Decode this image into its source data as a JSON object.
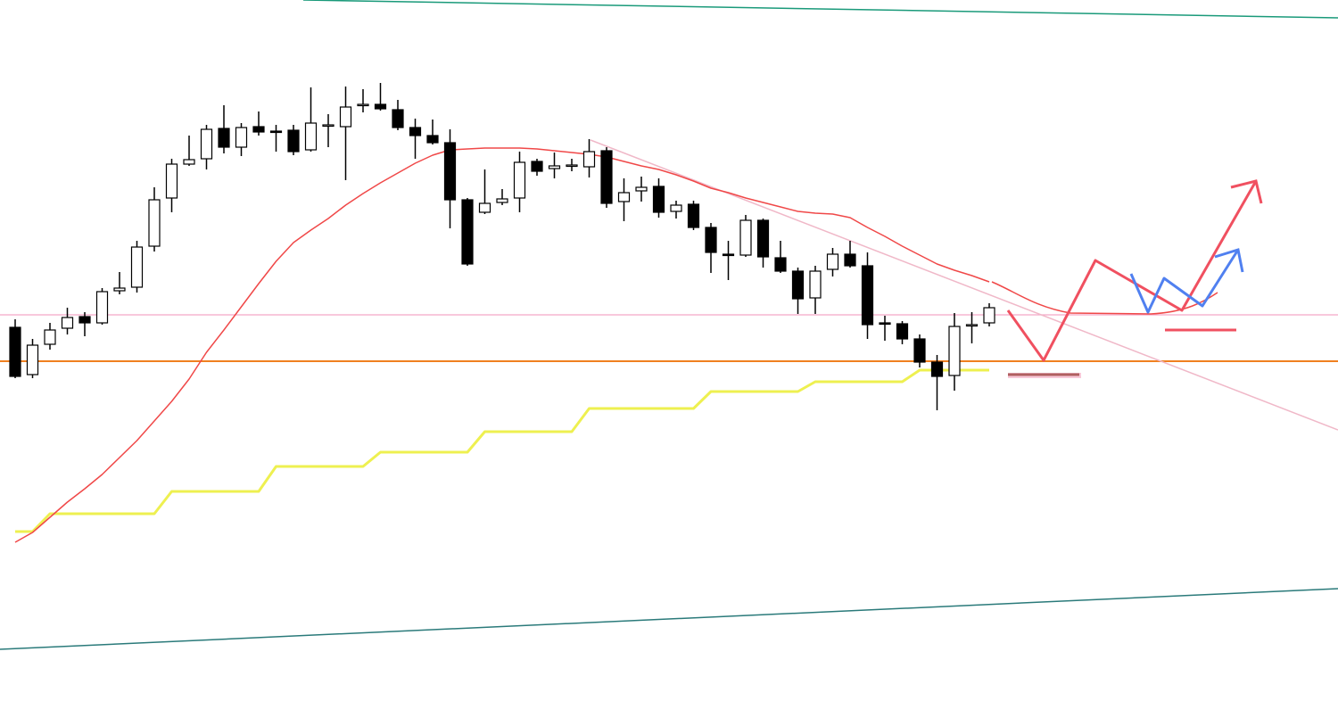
{
  "chart_data": {
    "type": "candlestick",
    "ylim": [
      0,
      814
    ],
    "open": [
      447,
      394,
      428,
      446,
      459,
      452,
      488,
      492,
      538,
      592,
      630,
      636,
      670,
      649,
      672,
      667,
      668,
      646,
      673,
      672,
      696,
      697,
      691,
      671,
      662,
      654,
      590,
      576,
      587,
      592,
      633,
      625,
      628,
      627,
      645,
      588,
      600,
      605,
      577,
      585,
      559,
      529,
      528,
      567,
      525,
      510,
      480,
      512,
      529,
      516,
      452,
      451,
      434,
      408,
      393,
      449,
      452
    ],
    "high": [
      456,
      434,
      452,
      469,
      464,
      491,
      509,
      544,
      604,
      636,
      662,
      674,
      696,
      676,
      689,
      674,
      674,
      716,
      686,
      717,
      714,
      721,
      702,
      681,
      680,
      669,
      592,
      624,
      602,
      644,
      636,
      643,
      636,
      658,
      649,
      614,
      616,
      614,
      589,
      589,
      564,
      544,
      573,
      569,
      544,
      514,
      516,
      536,
      544,
      531,
      460,
      454,
      439,
      416,
      463,
      464,
      474
    ],
    "low": [
      390,
      390,
      422,
      439,
      437,
      450,
      484,
      486,
      532,
      576,
      628,
      624,
      642,
      639,
      662,
      644,
      640,
      644,
      649,
      612,
      688,
      690,
      668,
      636,
      652,
      558,
      516,
      574,
      584,
      576,
      617,
      614,
      622,
      615,
      581,
      566,
      588,
      570,
      569,
      556,
      508,
      500,
      526,
      514,
      508,
      462,
      462,
      504,
      514,
      434,
      432,
      428,
      402,
      354,
      376,
      429,
      448
    ],
    "close": [
      392,
      427,
      444,
      458,
      452,
      487,
      491,
      537,
      590,
      630,
      635,
      669,
      649,
      671,
      666,
      666,
      644,
      676,
      674,
      694,
      697,
      692,
      671,
      662,
      654,
      590,
      518,
      586,
      591,
      632,
      622,
      628,
      629,
      644,
      586,
      598,
      604,
      576,
      584,
      559,
      531,
      528,
      567,
      526,
      510,
      479,
      510,
      529,
      516,
      450,
      451,
      434,
      408,
      392,
      448,
      450,
      469
    ],
    "up_color": "#ffffff",
    "down_color": "#000000",
    "ma": {
      "color": "#f04848",
      "values": [
        206,
        217,
        234,
        251,
        266,
        282,
        301,
        320,
        342,
        364,
        389,
        419,
        444,
        470,
        496,
        521,
        542,
        556,
        569,
        584,
        597,
        609,
        620,
        631,
        640,
        646,
        647,
        648,
        648,
        648,
        647,
        645,
        643,
        641,
        638,
        633,
        628,
        624,
        618,
        611,
        603,
        598,
        592,
        587,
        582,
        577,
        575,
        574,
        570,
        559,
        549,
        538,
        528,
        518,
        511,
        505,
        498
      ]
    },
    "step_line": {
      "color": "#eef050",
      "values": [
        218,
        218,
        238,
        238,
        238,
        238,
        238,
        238,
        238,
        263,
        263,
        263,
        263,
        263,
        263,
        291,
        291,
        291,
        291,
        291,
        291,
        307,
        307,
        307,
        307,
        307,
        307,
        330,
        330,
        330,
        330,
        330,
        330,
        356,
        356,
        356,
        356,
        356,
        356,
        356,
        375,
        375,
        375,
        375,
        375,
        375,
        386,
        386,
        386,
        386,
        386,
        386,
        399,
        399,
        399,
        399,
        399
      ]
    }
  }
}
